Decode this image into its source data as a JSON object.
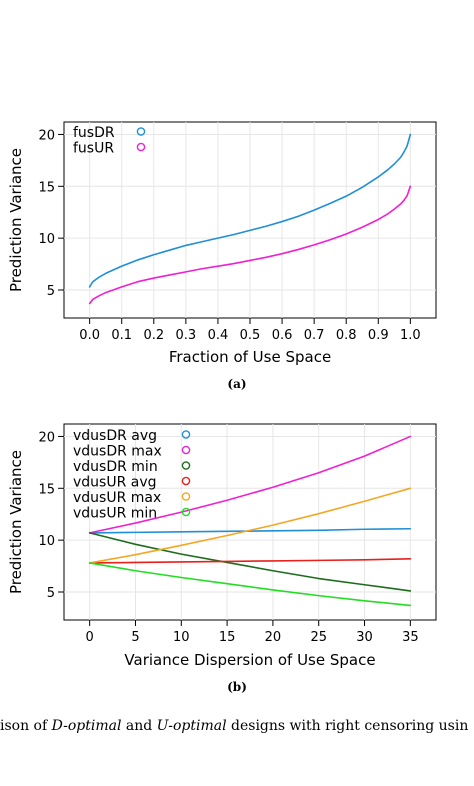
{
  "chart_data": [
    {
      "type": "line",
      "panel_label": "(a)",
      "xlabel": "Fraction of Use Space",
      "ylabel": "Prediction Variance",
      "xlim": [
        -0.08,
        1.08
      ],
      "ylim": [
        2.3,
        21.2
      ],
      "xticks": [
        0.0,
        0.1,
        0.2,
        0.3,
        0.4,
        0.5,
        0.6,
        0.7,
        0.8,
        0.9,
        1.0
      ],
      "xtick_labels": [
        "0.0",
        "0.1",
        "0.2",
        "0.3",
        "0.4",
        "0.5",
        "0.6",
        "0.7",
        "0.8",
        "0.9",
        "1.0"
      ],
      "yticks": [
        5,
        10,
        15,
        20
      ],
      "ytick_labels": [
        "5",
        "10",
        "15",
        "20"
      ],
      "grid": true,
      "legend_position": "top-left",
      "series": [
        {
          "name": "fusDR",
          "color": "#1f8fd6",
          "x": [
            0.0,
            0.01,
            0.03,
            0.05,
            0.1,
            0.15,
            0.2,
            0.25,
            0.3,
            0.35,
            0.4,
            0.45,
            0.5,
            0.55,
            0.6,
            0.65,
            0.7,
            0.75,
            0.8,
            0.85,
            0.9,
            0.93,
            0.95,
            0.97,
            0.98,
            0.99,
            1.0
          ],
          "y": [
            5.3,
            5.8,
            6.25,
            6.6,
            7.3,
            7.9,
            8.4,
            8.85,
            9.3,
            9.65,
            10.0,
            10.35,
            10.75,
            11.15,
            11.6,
            12.1,
            12.7,
            13.35,
            14.05,
            14.9,
            15.9,
            16.6,
            17.15,
            17.8,
            18.3,
            18.9,
            20.0
          ]
        },
        {
          "name": "fusUR",
          "color": "#ee1fd4",
          "x": [
            0.0,
            0.01,
            0.03,
            0.05,
            0.1,
            0.15,
            0.2,
            0.25,
            0.3,
            0.35,
            0.4,
            0.45,
            0.5,
            0.55,
            0.6,
            0.65,
            0.7,
            0.75,
            0.8,
            0.85,
            0.9,
            0.93,
            0.95,
            0.97,
            0.98,
            0.99,
            1.0
          ],
          "y": [
            3.7,
            4.1,
            4.45,
            4.75,
            5.3,
            5.8,
            6.15,
            6.45,
            6.75,
            7.05,
            7.3,
            7.55,
            7.85,
            8.15,
            8.5,
            8.9,
            9.35,
            9.85,
            10.4,
            11.05,
            11.8,
            12.35,
            12.8,
            13.3,
            13.65,
            14.1,
            15.0
          ]
        }
      ]
    },
    {
      "type": "line",
      "panel_label": "(b)",
      "xlabel": "Variance Dispersion of Use Space",
      "ylabel": "Prediction Variance",
      "xlim": [
        -2.8,
        37.8
      ],
      "ylim": [
        2.3,
        21.2
      ],
      "xticks": [
        0,
        5,
        10,
        15,
        20,
        25,
        30,
        35
      ],
      "xtick_labels": [
        "0",
        "5",
        "10",
        "15",
        "20",
        "25",
        "30",
        "35"
      ],
      "yticks": [
        5,
        10,
        15,
        20
      ],
      "ytick_labels": [
        "5",
        "10",
        "15",
        "20"
      ],
      "grid": true,
      "legend_position": "top-left",
      "series": [
        {
          "name": "vdusDR avg",
          "color": "#1f8fd6",
          "x": [
            0,
            5,
            10,
            15,
            20,
            25,
            30,
            35
          ],
          "y": [
            10.7,
            10.75,
            10.8,
            10.85,
            10.9,
            10.95,
            11.05,
            11.1
          ]
        },
        {
          "name": "vdusDR max",
          "color": "#ee1fd4",
          "x": [
            0,
            5,
            10,
            15,
            20,
            25,
            30,
            35
          ],
          "y": [
            10.7,
            11.65,
            12.7,
            13.85,
            15.1,
            16.5,
            18.1,
            20.0
          ]
        },
        {
          "name": "vdusDR min",
          "color": "#1e6b1e",
          "x": [
            0,
            5,
            10,
            15,
            20,
            25,
            30,
            35
          ],
          "y": [
            10.7,
            9.6,
            8.65,
            7.85,
            7.05,
            6.3,
            5.7,
            5.1
          ]
        },
        {
          "name": "vdusUR avg",
          "color": "#e8201c",
          "x": [
            0,
            5,
            10,
            15,
            20,
            25,
            30,
            35
          ],
          "y": [
            7.8,
            7.85,
            7.9,
            7.95,
            8.0,
            8.05,
            8.1,
            8.2
          ]
        },
        {
          "name": "vdusUR max",
          "color": "#f5a623",
          "x": [
            0,
            5,
            10,
            15,
            20,
            25,
            30,
            35
          ],
          "y": [
            7.8,
            8.6,
            9.5,
            10.45,
            11.45,
            12.55,
            13.75,
            15.0
          ]
        },
        {
          "name": "vdusUR min",
          "color": "#22dd22",
          "x": [
            0,
            5,
            10,
            15,
            20,
            25,
            30,
            35
          ],
          "y": [
            7.8,
            7.05,
            6.4,
            5.8,
            5.2,
            4.65,
            4.15,
            3.7
          ]
        }
      ]
    }
  ],
  "caption": {
    "part1": "ison of ",
    "em1": "D-optimal",
    "part2": " and ",
    "em2": "U-optimal",
    "part3": " designs with right censoring usin"
  }
}
